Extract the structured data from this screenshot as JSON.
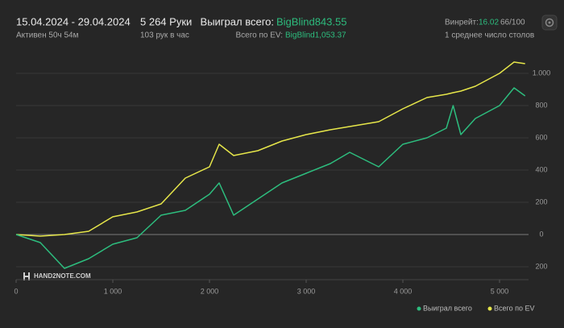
{
  "header": {
    "period": "15.04.2024 - 29.04.2024",
    "active": "Активен 50ч 54м",
    "hands": "5 264 Руки",
    "rate": "103 рук в час",
    "won_label": "Выиграл всего:",
    "won_value": "BigBlind843.55",
    "ev_label": "Всего по EV:",
    "ev_value": "BigBlind1,053.37",
    "winrate_label": "Винрейт:",
    "winrate_value": "16.02",
    "winrate_unit": "66/100",
    "tables": "1 среднее число столов",
    "logo": "HAND2NOTE.COM"
  },
  "chart_data": {
    "type": "line",
    "x": [
      0,
      250,
      500,
      750,
      1000,
      1250,
      1500,
      1750,
      2000,
      2100,
      2250,
      2500,
      2750,
      3000,
      3250,
      3450,
      3750,
      4000,
      4250,
      4450,
      4520,
      4600,
      4750,
      5000,
      5150,
      5264
    ],
    "series": [
      {
        "name": "Выиграл всего",
        "color": "#2dbd7e",
        "values": [
          0,
          -50,
          -210,
          -150,
          -60,
          -20,
          120,
          150,
          250,
          320,
          120,
          220,
          320,
          380,
          440,
          510,
          420,
          560,
          600,
          660,
          800,
          620,
          720,
          800,
          910,
          860
        ]
      },
      {
        "name": "Всего по EV",
        "color": "#e6e64a",
        "values": [
          0,
          -10,
          0,
          20,
          110,
          140,
          190,
          350,
          420,
          560,
          490,
          520,
          580,
          620,
          650,
          670,
          700,
          780,
          850,
          870,
          880,
          890,
          920,
          1000,
          1070,
          1060
        ]
      }
    ],
    "xlim": [
      0,
      5300
    ],
    "ylim": [
      -280,
      1150
    ],
    "xticks": [
      0,
      {
        "value": 1000,
        "label": "1 000"
      },
      {
        "value": 2000,
        "label": "2 000"
      },
      {
        "value": 3000,
        "label": "3 000"
      },
      {
        "value": 4000,
        "label": "4 000"
      },
      {
        "value": 5000,
        "label": "5 000"
      }
    ],
    "yticks": [
      {
        "value": -200,
        "label": "200"
      },
      0,
      200,
      400,
      600,
      800,
      {
        "value": 1000,
        "label": "1.000"
      }
    ],
    "grid": true,
    "legend": "bottom-right"
  }
}
